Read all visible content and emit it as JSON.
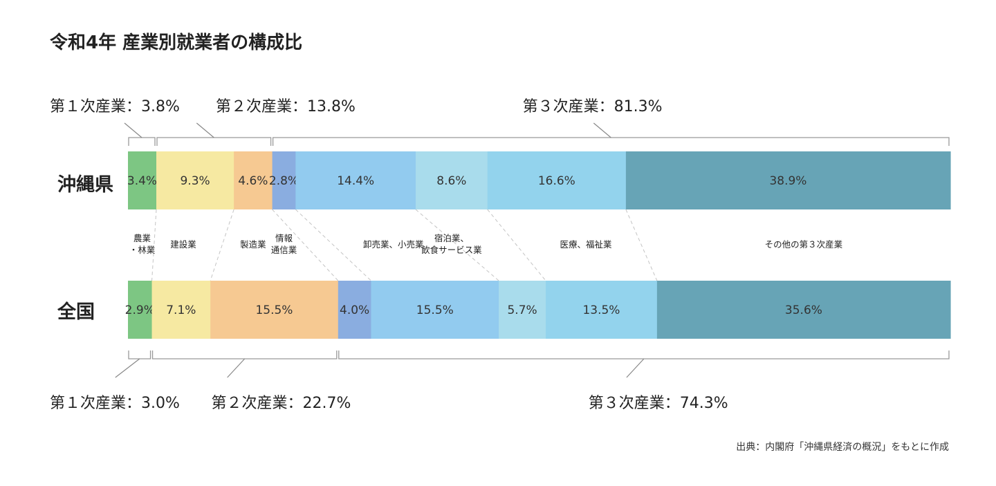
{
  "chart_data": {
    "type": "bar",
    "stacked": "100% horizontal",
    "title": "令和4年 産業別就業者の構成比",
    "categories": [
      "沖縄県",
      "全国"
    ],
    "series": [
      {
        "name": "農業・林業",
        "values": [
          3.4,
          2.9
        ],
        "color": "#7dc683"
      },
      {
        "name": "建設業",
        "values": [
          9.3,
          7.1
        ],
        "color": "#f6e9a2"
      },
      {
        "name": "製造業",
        "values": [
          4.6,
          15.5
        ],
        "color": "#f6c992"
      },
      {
        "name": "情報通信業",
        "values": [
          2.8,
          4.0
        ],
        "color": "#8aade0"
      },
      {
        "name": "卸売業、小売業",
        "values": [
          14.4,
          15.5
        ],
        "color": "#92cbef"
      },
      {
        "name": "宿泊業、飲食サービス業",
        "values": [
          8.6,
          5.7
        ],
        "color": "#a9dcec"
      },
      {
        "name": "医療、福祉業",
        "values": [
          16.6,
          13.5
        ],
        "color": "#93d3ed"
      },
      {
        "name": "その他の第３次産業",
        "values": [
          38.9,
          35.6
        ],
        "color": "#67a4b6"
      }
    ],
    "value_labels": [
      [
        "3.4%",
        "9.3%",
        "4.6%",
        "2.8%",
        "14.4%",
        "8.6%",
        "16.6%",
        "38.9%"
      ],
      [
        "2.9%",
        "7.1%",
        "15.5%",
        "4.0%",
        "15.5%",
        "5.7%",
        "13.5%",
        "35.6%"
      ]
    ],
    "legend_labels": [
      [
        "農業",
        "・林業"
      ],
      [
        "建設業"
      ],
      [
        "製造業"
      ],
      [
        "情報",
        "通信業"
      ],
      [
        "卸売業、小売業"
      ],
      [
        "宿泊業、",
        "飲食サービス業"
      ],
      [
        "医療、福祉業"
      ],
      [
        "その他の第３次産業"
      ]
    ],
    "sectors": {
      "top": [
        {
          "label": "第１次産業：3.8%",
          "first": 0,
          "last": 0
        },
        {
          "label": "第２次産業：13.8%",
          "first": 1,
          "last": 2
        },
        {
          "label": "第３次産業：81.3%",
          "first": 3,
          "last": 7
        }
      ],
      "bottom": [
        {
          "label": "第１次産業：3.0%",
          "first": 0,
          "last": 0
        },
        {
          "label": "第２次産業：22.7%",
          "first": 1,
          "last": 2
        },
        {
          "label": "第３次産業：74.3%",
          "first": 3,
          "last": 7
        }
      ]
    },
    "source": "出典：内閣府「沖縄県経済の概況」をもとに作成"
  }
}
